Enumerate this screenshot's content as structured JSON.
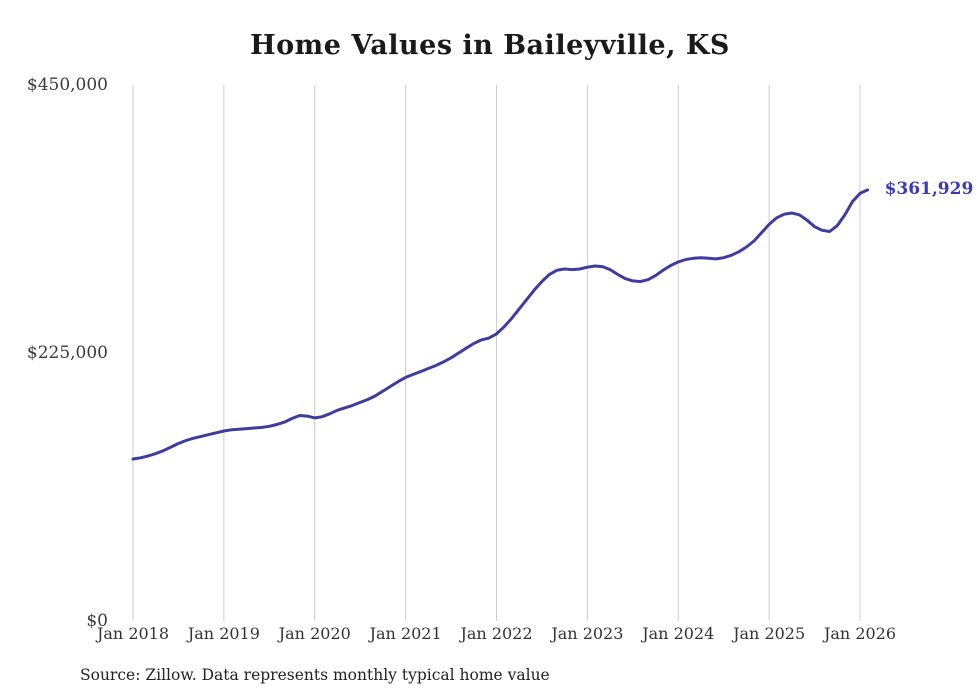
{
  "title": "Home Values in Baileyville, KS",
  "footer": {
    "source": "Source: Zillow. Data represents monthly typical home value"
  },
  "chart_data": {
    "type": "line",
    "title": "Home Values in Baileyville, KS",
    "series_name": "Monthly typical home value",
    "x_start": "Jan 2018",
    "x_end": "Feb 2026",
    "interval": "monthly",
    "x_ticks": [
      "Jan 2018",
      "Jan 2019",
      "Jan 2020",
      "Jan 2021",
      "Jan 2022",
      "Jan 2023",
      "Jan 2024",
      "Jan 2025",
      "Jan 2026"
    ],
    "y_ticks": [
      "$450,000",
      "$225,000",
      "$0"
    ],
    "ylim": [
      0,
      450000
    ],
    "end_label": "$361,929",
    "end_value": 361929,
    "line_color": "#3d3d9e",
    "label_color": "#3939bd",
    "grid_color": "#cccccc",
    "values": [
      136000,
      137000,
      138500,
      140500,
      143000,
      146000,
      149000,
      151500,
      153500,
      155000,
      156500,
      158000,
      159500,
      160500,
      161000,
      161500,
      162000,
      162500,
      163500,
      165000,
      167000,
      170000,
      172500,
      172000,
      170500,
      171500,
      174000,
      177000,
      179000,
      181000,
      183500,
      186000,
      189000,
      193000,
      197000,
      201000,
      204500,
      207000,
      209500,
      212000,
      214500,
      217500,
      221000,
      225000,
      229000,
      233000,
      236000,
      237500,
      241000,
      247000,
      254000,
      262000,
      270000,
      278000,
      285000,
      291000,
      294500,
      295500,
      295000,
      295500,
      297000,
      298000,
      297500,
      295000,
      291000,
      287500,
      285500,
      285000,
      286500,
      290000,
      294500,
      298500,
      301500,
      303500,
      304500,
      305000,
      304500,
      304000,
      305000,
      307000,
      310000,
      314000,
      319000,
      326000,
      333000,
      338500,
      341500,
      342500,
      341000,
      336500,
      331000,
      328000,
      327000,
      332000,
      341000,
      352000,
      359000,
      361929
    ]
  }
}
